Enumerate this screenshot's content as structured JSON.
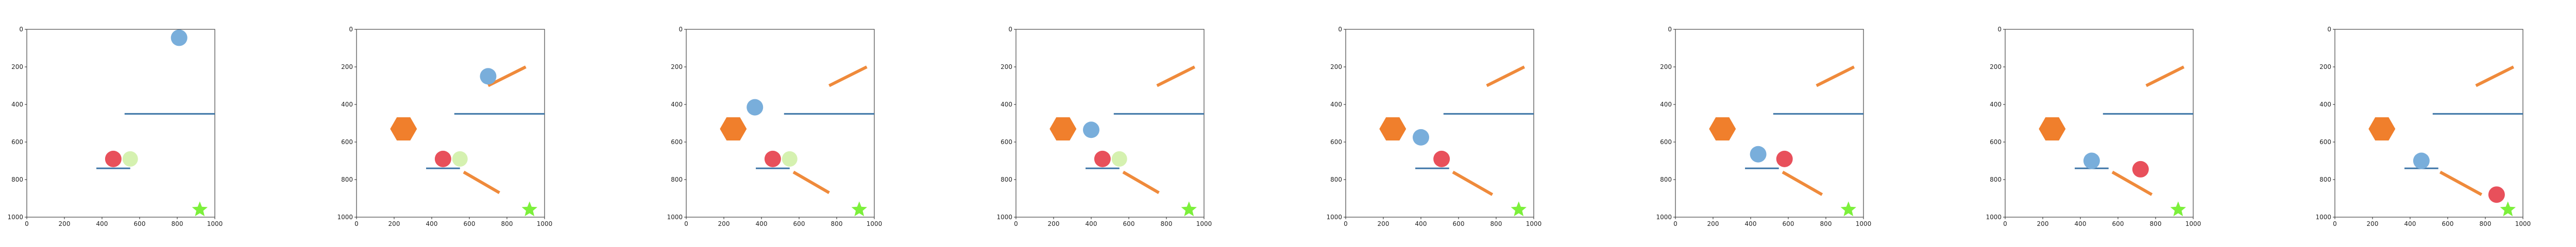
{
  "axis": {
    "x_ticks": [
      "0",
      "200",
      "400",
      "600",
      "800",
      "1000"
    ],
    "y_ticks": [
      "0",
      "200",
      "400",
      "600",
      "800",
      "1000"
    ]
  },
  "colors": {
    "blue_line": "#3b73a6",
    "orange": "#ef8a3b",
    "red": "#e8505b",
    "light_blue": "#79aedb",
    "pale_green": "#d5f1b0",
    "green_star": "#7cf03b",
    "orange_hex": "#f07f2c"
  },
  "frames": [
    {
      "blue_circle": [
        810,
        45
      ],
      "red_circle": [
        460,
        690
      ],
      "pale_circle": [
        550,
        690
      ],
      "hexagon": null,
      "orange_lines": []
    },
    {
      "blue_circle": [
        700,
        250
      ],
      "red_circle": [
        460,
        690
      ],
      "pale_circle": [
        550,
        690
      ],
      "hexagon": [
        250,
        530
      ],
      "orange_lines": [
        [
          700,
          300,
          900,
          200
        ],
        [
          570,
          760,
          760,
          870
        ]
      ]
    },
    {
      "blue_circle": [
        365,
        415
      ],
      "red_circle": [
        460,
        690
      ],
      "pale_circle": [
        550,
        690
      ],
      "hexagon": [
        250,
        530
      ],
      "orange_lines": [
        [
          760,
          300,
          960,
          200
        ],
        [
          570,
          760,
          760,
          870
        ]
      ]
    },
    {
      "blue_circle": [
        400,
        535
      ],
      "red_circle": [
        460,
        690
      ],
      "pale_circle": [
        550,
        690
      ],
      "hexagon": [
        250,
        530
      ],
      "orange_lines": [
        [
          750,
          300,
          950,
          200
        ],
        [
          570,
          760,
          760,
          870
        ]
      ]
    },
    {
      "blue_circle": [
        400,
        575
      ],
      "red_circle": [
        510,
        690
      ],
      "pale_circle": null,
      "hexagon": [
        250,
        530
      ],
      "orange_lines": [
        [
          750,
          300,
          950,
          200
        ],
        [
          570,
          760,
          780,
          880
        ]
      ]
    },
    {
      "blue_circle": [
        440,
        665
      ],
      "red_circle": [
        580,
        690
      ],
      "pale_circle": null,
      "hexagon": [
        250,
        530
      ],
      "orange_lines": [
        [
          750,
          300,
          950,
          200
        ],
        [
          570,
          760,
          780,
          880
        ]
      ]
    },
    {
      "blue_circle": [
        460,
        700
      ],
      "red_circle": [
        720,
        745
      ],
      "pale_circle": null,
      "hexagon": [
        250,
        530
      ],
      "orange_lines": [
        [
          750,
          300,
          950,
          200
        ],
        [
          570,
          760,
          780,
          880
        ]
      ]
    },
    {
      "blue_circle": [
        460,
        700
      ],
      "red_circle": [
        860,
        880
      ],
      "pale_circle": null,
      "hexagon": [
        250,
        530
      ],
      "orange_lines": [
        [
          750,
          300,
          950,
          200
        ],
        [
          560,
          760,
          780,
          880
        ]
      ]
    }
  ],
  "static": {
    "long_blue_line": [
      520,
      450,
      1000,
      450
    ],
    "short_blue_line": [
      370,
      740,
      550,
      740
    ],
    "star": [
      920,
      960
    ]
  }
}
